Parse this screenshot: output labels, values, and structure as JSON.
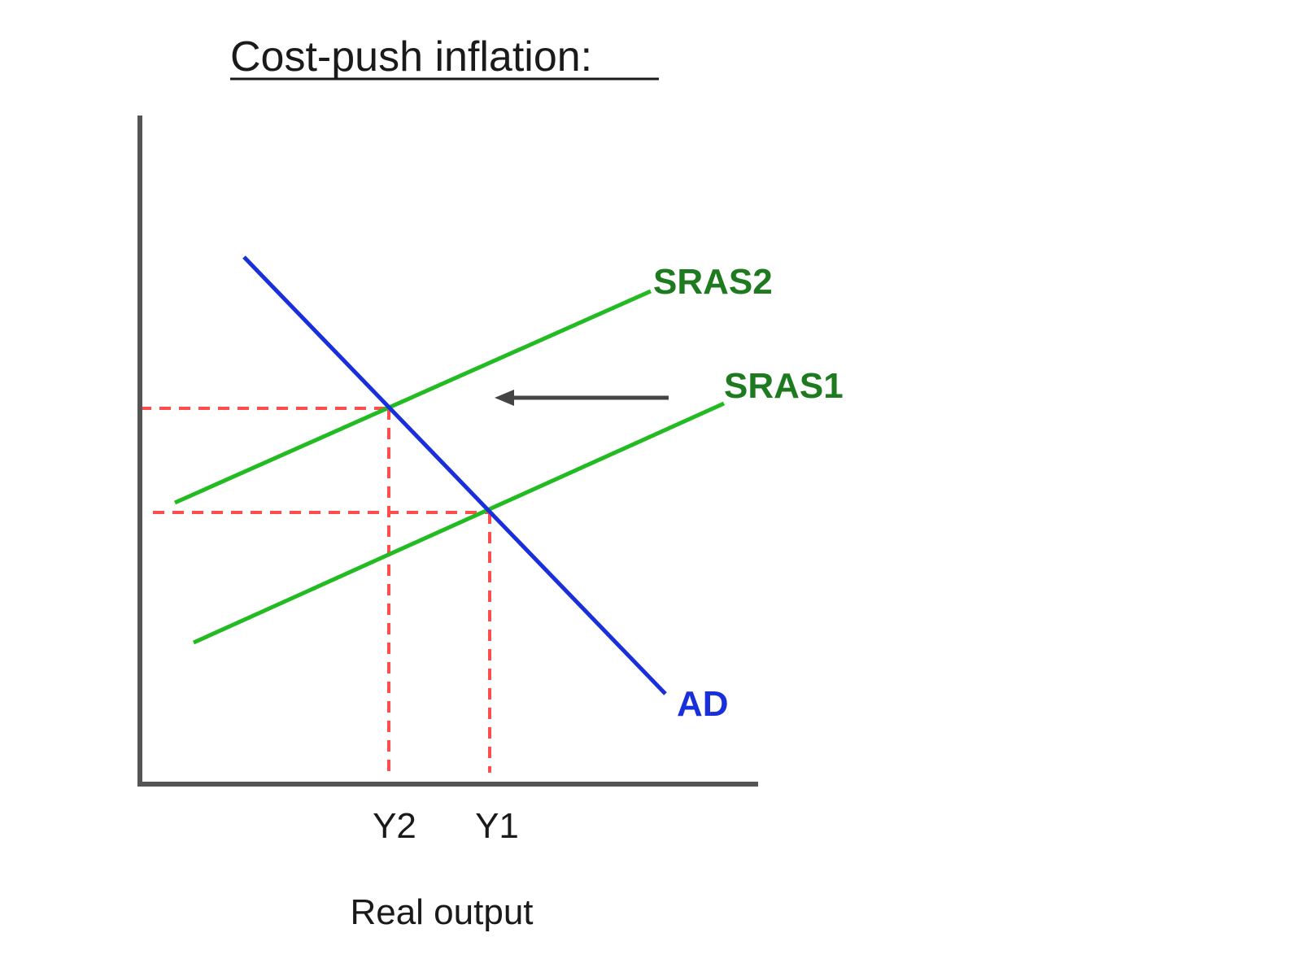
{
  "title": "Cost-push inflation:",
  "x_axis_label": "Real output",
  "colors": {
    "axis": "#555555",
    "ad": "#1a2fdc",
    "sras_line": "#22bb22",
    "sras_label": "#1e7a1e",
    "guide": "#ff4d4d",
    "arrow": "#444444"
  },
  "curves": {
    "ad": {
      "label": "AD"
    },
    "sras1": {
      "label": "SRAS1"
    },
    "sras2": {
      "label": "SRAS2"
    }
  },
  "ticks": {
    "y1": "Y1",
    "y2": "Y2"
  },
  "shift_arrow": {
    "direction": "left",
    "meaning": "SRAS1 shifts to SRAS2"
  }
}
